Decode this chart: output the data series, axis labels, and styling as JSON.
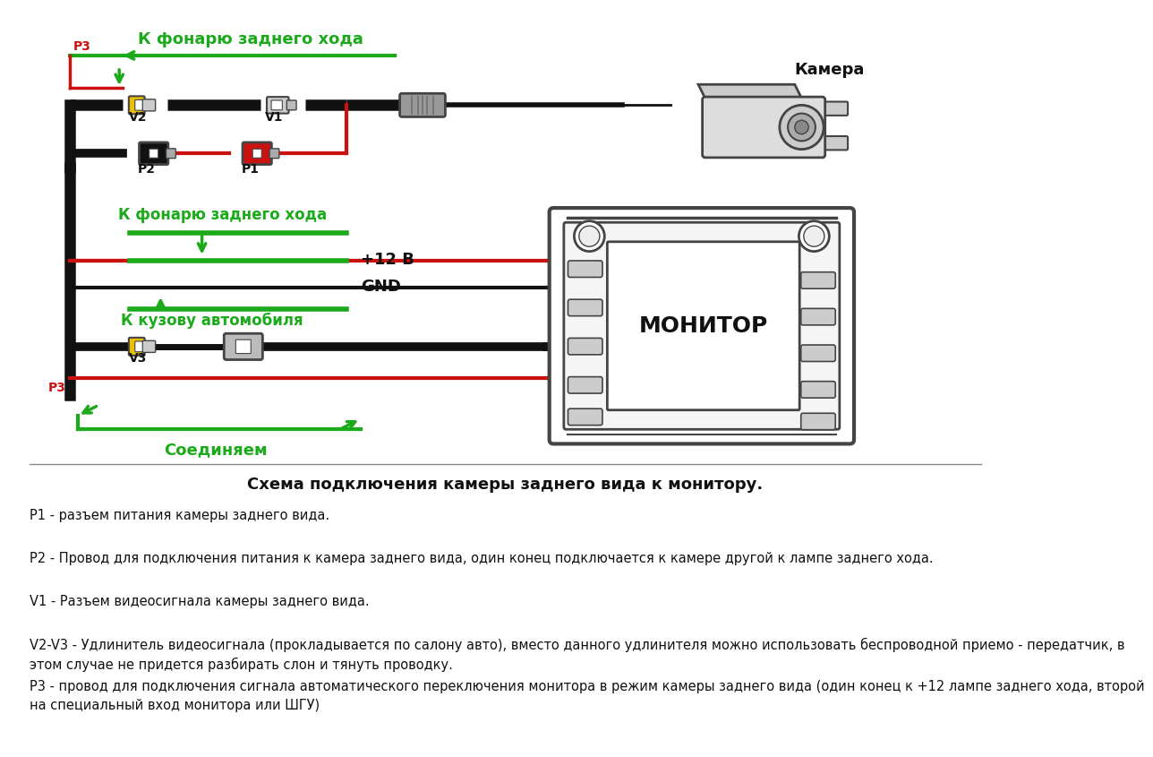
{
  "bg_color": "#ffffff",
  "diagram_title": "Схема подключения камеры заднего вида к монитору.",
  "legend_lines": [
    "Р1 - разъем питания камеры заднего вида.",
    "Р2 - Провод для подключения питания к камера заднего вида, один конец подключается к камере другой к лампе заднего хода.",
    "V1 - Разъем видеосигнала камеры заднего вида.",
    "V2-V3 - Удлинитель видеосигнала (прокладывается по салону авто), вместо данного удлинителя можно использовать беспроводной приемо - передатчик, в\nэтом случае не придется разбирать слон и тянуть проводку.",
    "Р3 - провод для подключения сигнала автоматического переключения монитора в режим камеры заднего вида (один конец к +12 лампе заднего хода, второй\nна специальный вход монитора или ШГУ)"
  ],
  "green_color": "#1aaa1a",
  "red_color": "#cc1111",
  "yellow_color": "#e8c000",
  "black_color": "#111111",
  "gray_color": "#aaaaaa",
  "dark_gray": "#444444",
  "label_color": "#222222"
}
